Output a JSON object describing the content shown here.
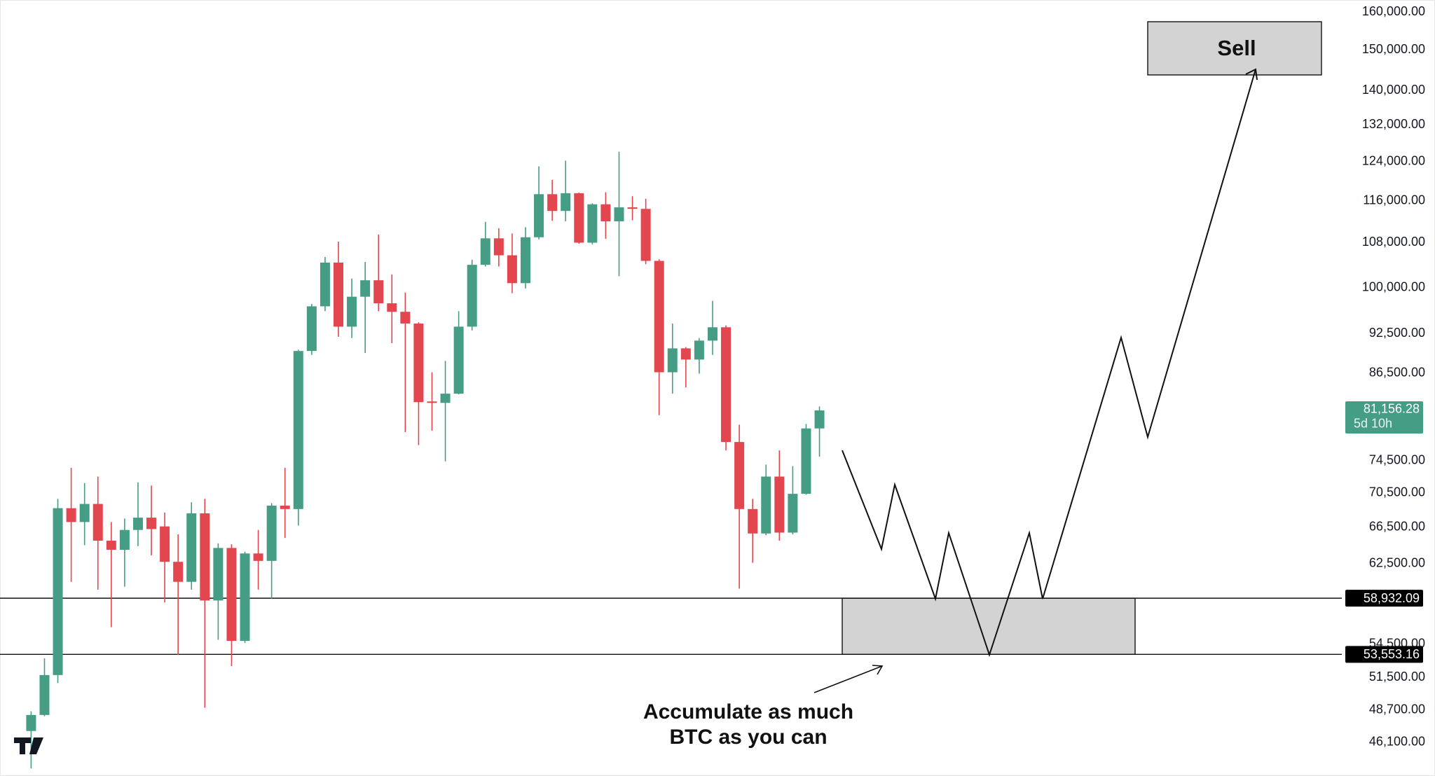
{
  "chart_data": {
    "type": "candlestick",
    "log_scale": true,
    "ylim": [
      43530,
      163300
    ],
    "yticks": [
      {
        "value": 160000,
        "label": "160,000.00"
      },
      {
        "value": 150000,
        "label": "150,000.00"
      },
      {
        "value": 140000,
        "label": "140,000.00"
      },
      {
        "value": 132000,
        "label": "132,000.00"
      },
      {
        "value": 124000,
        "label": "124,000.00"
      },
      {
        "value": 116000,
        "label": "116,000.00"
      },
      {
        "value": 108000,
        "label": "108,000.00"
      },
      {
        "value": 100000,
        "label": "100,000.00"
      },
      {
        "value": 92500,
        "label": "92,500.00"
      },
      {
        "value": 86500,
        "label": "86,500.00"
      },
      {
        "value": 74500,
        "label": "74,500.00"
      },
      {
        "value": 70500,
        "label": "70,500.00"
      },
      {
        "value": 66500,
        "label": "66,500.00"
      },
      {
        "value": 62500,
        "label": "62,500.00"
      },
      {
        "value": 54500,
        "label": "54,500.00"
      },
      {
        "value": 51500,
        "label": "51,500.00"
      },
      {
        "value": 48700,
        "label": "48,700.00"
      },
      {
        "value": 46100,
        "label": "46,100.00"
      }
    ],
    "up_color": "#459d86",
    "down_color": "#e2474f",
    "open": [
      47000,
      48300,
      51700,
      68700,
      67100,
      69200,
      65000,
      64000,
      66200,
      67600,
      66600,
      62700,
      60600,
      68100,
      58700,
      64200,
      54800,
      63600,
      62800,
      69000,
      68600,
      89800,
      96900,
      104400,
      93600,
      98500,
      101300,
      97400,
      96000,
      94100,
      82400,
      82200,
      83500,
      93600,
      104000,
      108800,
      105700,
      100800,
      109000,
      117300,
      114000,
      117500,
      108000,
      115300,
      112000,
      114700,
      114400,
      104700,
      86600,
      90200,
      88500,
      91400,
      93500,
      76900,
      68600,
      65800,
      72500,
      65900,
      70400,
      78700
    ],
    "high": [
      48600,
      53200,
      69800,
      73600,
      71700,
      72500,
      67100,
      67500,
      71800,
      71400,
      68200,
      65700,
      69400,
      69800,
      64700,
      64600,
      63800,
      66200,
      69300,
      73600,
      90000,
      97300,
      105400,
      108200,
      101600,
      104500,
      109500,
      102300,
      99200,
      94300,
      86600,
      88300,
      96100,
      104900,
      111900,
      110700,
      109700,
      110900,
      123000,
      120200,
      124200,
      117600,
      115500,
      117700,
      126100,
      116900,
      116400,
      105000,
      94100,
      90400,
      91800,
      97800,
      93800,
      79200,
      69800,
      74000,
      75800,
      73800,
      79300,
      81700
    ],
    "low": [
      44100,
      48200,
      51000,
      60600,
      64500,
      59800,
      56100,
      60100,
      64400,
      63400,
      58500,
      53500,
      59800,
      48900,
      54900,
      52500,
      54600,
      59800,
      58900,
      65300,
      66700,
      89200,
      96100,
      92000,
      91800,
      89500,
      96100,
      91000,
      78200,
      76500,
      78400,
      74400,
      83400,
      93000,
      103700,
      103700,
      99100,
      99900,
      108600,
      112100,
      112000,
      107800,
      107700,
      108700,
      102000,
      112200,
      104100,
      80500,
      83500,
      84400,
      86400,
      89200,
      75800,
      59900,
      62600,
      65600,
      65000,
      65700,
      70300,
      75000
    ],
    "close": [
      48300,
      51700,
      68700,
      67100,
      69200,
      65000,
      64000,
      66200,
      67600,
      66300,
      62700,
      60600,
      68100,
      58700,
      64200,
      54800,
      63600,
      62800,
      69000,
      68600,
      89800,
      96900,
      104400,
      93600,
      98500,
      101300,
      97400,
      96000,
      94100,
      82300,
      82200,
      83500,
      93600,
      104000,
      108800,
      105700,
      100800,
      109000,
      117300,
      114000,
      117500,
      108000,
      115300,
      112000,
      114700,
      114400,
      104700,
      86600,
      90200,
      88500,
      91400,
      93500,
      76900,
      68600,
      65800,
      72500,
      65900,
      70400,
      78700,
      81156.28
    ],
    "last_price_label": "81,156.28",
    "countdown": "5d 10h",
    "levels": [
      {
        "value": 58932.09,
        "label": "58,932.09"
      },
      {
        "value": 53553.16,
        "label": "53,553.16"
      }
    ],
    "annotations": {
      "sell": "Sell",
      "accumulate": [
        "Accumulate as much",
        "BTC as you can"
      ]
    }
  }
}
